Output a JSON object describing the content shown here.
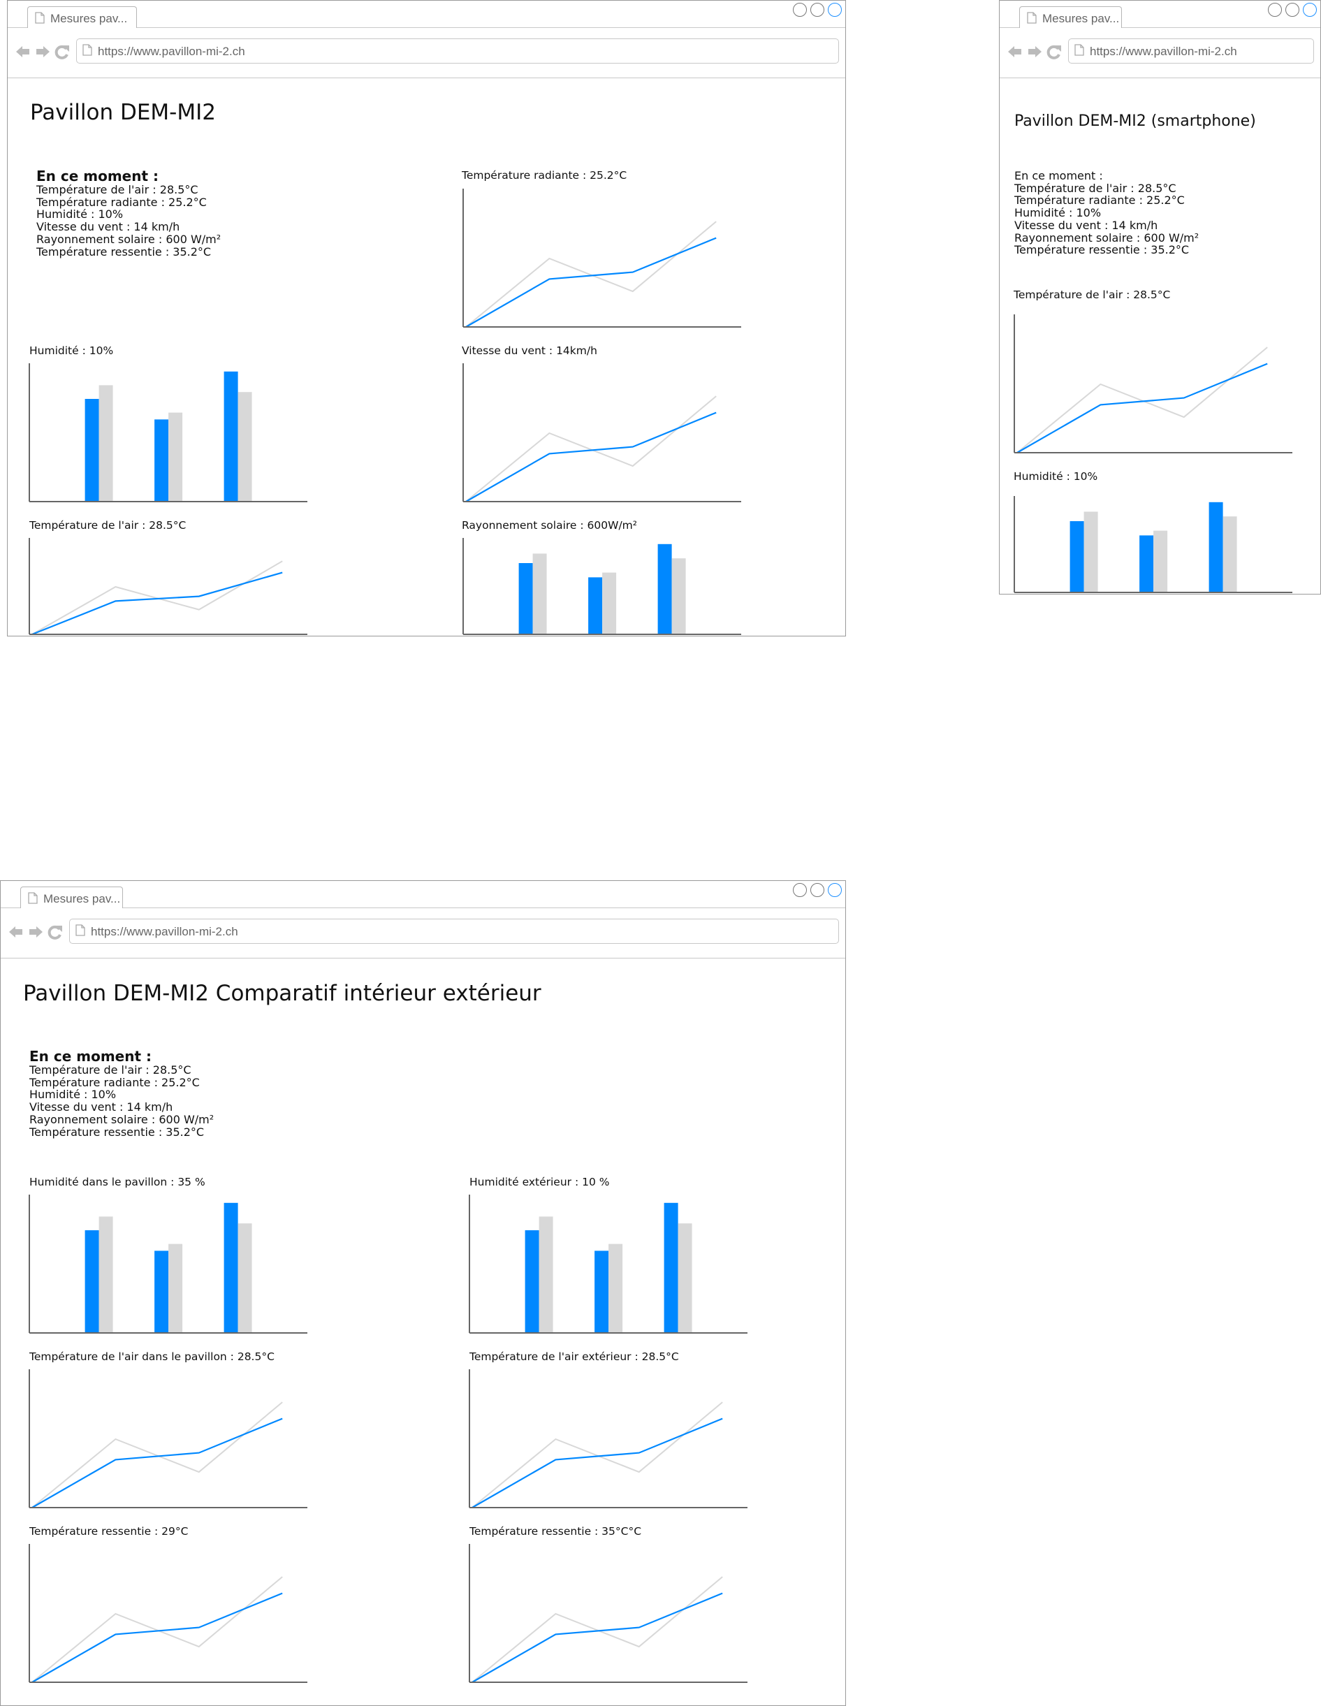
{
  "colors": {
    "accent": "#0088ff",
    "reference": "#d8d8d8",
    "axis": "#666666",
    "frame": "#9a9a9a"
  },
  "windows": {
    "desktop": {
      "tab_title": "Mesures pav...",
      "url": "https://www.pavillon-mi-2.ch",
      "page_title": "Pavillon DEM-MI2",
      "now": {
        "heading": "En ce moment :",
        "lines": [
          "Température de l'air : 28.5°C",
          "Température radiante : 25.2°C",
          "Humidité : 10%",
          "Vitesse du vent : 14 km/h",
          "Rayonnement solaire : 600 W/m²",
          "Température ressentie : 35.2°C"
        ]
      },
      "chart_labels": [
        "Température radiante : 25.2°C",
        "Humidité : 10%",
        "Vitesse du vent : 14km/h",
        "Température de l'air : 28.5°C",
        "Rayonnement solaire : 600W/m²"
      ]
    },
    "smartphone": {
      "tab_title": "Mesures pav...",
      "url": "https://www.pavillon-mi-2.ch",
      "page_title": "Pavillon DEM-MI2 (smartphone)",
      "now": {
        "heading": "En ce moment :",
        "lines": [
          "Température de l'air : 28.5°C",
          "Température radiante : 25.2°C",
          "Humidité : 10%",
          "Vitesse du vent : 14 km/h",
          "Rayonnement solaire : 600 W/m²",
          "Température ressentie : 35.2°C"
        ]
      },
      "chart_labels": [
        "Température de l'air : 28.5°C",
        "Humidité : 10%"
      ]
    },
    "comparison": {
      "tab_title": "Mesures pav...",
      "url": "https://www.pavillon-mi-2.ch",
      "page_title": "Pavillon DEM-MI2 Comparatif intérieur extérieur",
      "now": {
        "heading": "En ce moment :",
        "lines": [
          "Température de l'air : 28.5°C",
          "Température radiante : 25.2°C",
          "Humidité : 10%",
          "Vitesse du vent : 14 km/h",
          "Rayonnement solaire : 600 W/m²",
          "Température ressentie : 35.2°C"
        ]
      },
      "chart_labels": [
        "Humidité dans le pavillon : 35 %",
        "Humidité extérieur : 10 %",
        "Température de l'air dans le pavillon : 28.5°C",
        "Température de l'air extérieur : 28.5°C",
        "Température ressentie : 29°C",
        "Température ressentie : 35°C°C"
      ]
    }
  },
  "chart_data": [
    {
      "type": "line",
      "series": [
        {
          "values": [
            0,
            0.35,
            0.4,
            0.65
          ]
        },
        {
          "values": [
            0,
            0.5,
            0.26,
            0.77
          ]
        }
      ],
      "ylim": [
        0,
        1
      ]
    },
    {
      "type": "bar",
      "series": [
        {
          "values": [
            0.75,
            0.6,
            0.95
          ]
        },
        {
          "values": [
            0.85,
            0.65,
            0.8
          ]
        }
      ],
      "ylim": [
        0,
        1
      ]
    }
  ]
}
